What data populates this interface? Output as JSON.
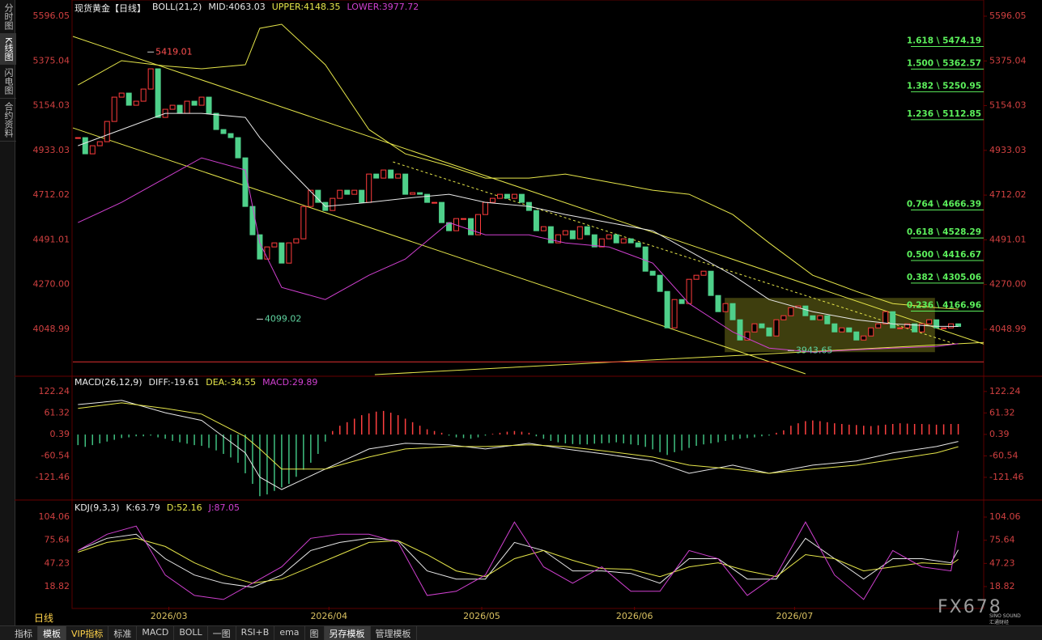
{
  "sidebar": [
    "分时图",
    "K线图",
    "闪电图",
    "合约资料"
  ],
  "period": "日线",
  "toolbar": [
    "指标",
    "模板",
    "VIP指标",
    "标准",
    "MACD",
    "BOLL",
    "一图",
    "RSI+B",
    "ema",
    "图",
    "另存模板",
    "管理模板"
  ],
  "watermark": {
    "brand": "FX678",
    "sub": "SINO SOUND",
    "cn": "汇通财经"
  },
  "chart_data": [
    {
      "type": "candlestick",
      "title": "现货黄金【日线】",
      "indicator": "BOLL(21,2)",
      "xlim": [
        -0.7,
        124.5
      ],
      "ylim": [
        3829,
        5596.05
      ],
      "yticks": [
        5596.05,
        5375.04,
        5154.03,
        4933.03,
        4712.02,
        4491.01,
        {
          "value": 4270,
          "label": "4270.00"
        },
        4048.99
      ],
      "grid": false,
      "up_color": "#ff3c3c",
      "down_color": "#4fd08a",
      "close": [
        4996,
        4916,
        4956,
        4976,
        5076,
        5196,
        5216,
        5156,
        5176,
        5236,
        5336,
        5096,
        5136,
        5156,
        5116,
        5176,
        5156,
        5196,
        5116,
        5036,
        5016,
        4996,
        4896,
        4656,
        4516,
        4396,
        4456,
        4476,
        4376,
        4476,
        4496,
        4656,
        4736,
        4676,
        4636,
        4696,
        4736,
        4716,
        4736,
        4676,
        4816,
        4796,
        4836,
        4796,
        4816,
        4716,
        4724,
        4716,
        4676,
        4676,
        4576,
        4536,
        4596,
        4596,
        4516,
        4616,
        4676,
        4696,
        4716,
        4696,
        4716,
        4676,
        4636,
        4536,
        4556,
        4476,
        4516,
        4536,
        4496,
        4556,
        4516,
        4456,
        4496,
        4516,
        4476,
        4496,
        4476,
        4456,
        4336,
        4316,
        4236,
        4056,
        4196,
        4176,
        4296,
        4316,
        4336,
        4216,
        4136,
        4176,
        4096,
        3996,
        4036,
        4076,
        4056,
        4016,
        4096,
        4116,
        4156,
        4164,
        4116,
        4096,
        4116,
        4076,
        4036,
        4056,
        4036,
        3996,
        4016,
        4056,
        4076,
        4136,
        4056,
        4056,
        4076,
        4036,
        4076,
        4096,
        4056,
        4056,
        4076,
        4063
      ],
      "series": [
        {
          "label": "MID:4063.03",
          "color": "#e8e8e8",
          "x": [
            0,
            6,
            12,
            17,
            23,
            25,
            28,
            34,
            40,
            45,
            51,
            56,
            62,
            67,
            73,
            79,
            84,
            90,
            95,
            101,
            107,
            112,
            118,
            121
          ],
          "values": [
            4956,
            5036,
            5116,
            5116,
            5096,
            4996,
            4876,
            4656,
            4676,
            4696,
            4716,
            4676,
            4656,
            4616,
            4576,
            4536,
            4436,
            4316,
            4196,
            4136,
            4096,
            4076,
            4064,
            4063.03
          ]
        },
        {
          "label": "UPPER:4148.35",
          "color": "#e6e64a",
          "x": [
            0,
            6,
            12,
            17,
            23,
            25,
            28,
            34,
            40,
            45,
            51,
            56,
            62,
            67,
            73,
            79,
            84,
            90,
            95,
            101,
            107,
            112,
            118,
            121
          ],
          "values": [
            5256,
            5376,
            5350,
            5336,
            5356,
            5536,
            5556,
            5356,
            5036,
            4916,
            4856,
            4796,
            4796,
            4816,
            4776,
            4736,
            4716,
            4616,
            4476,
            4316,
            4236,
            4176,
            4156,
            4148.35
          ]
        },
        {
          "label": "LOWER:3977.72",
          "color": "#d040d0",
          "x": [
            0,
            6,
            12,
            17,
            23,
            25,
            28,
            34,
            40,
            45,
            51,
            56,
            62,
            67,
            73,
            79,
            84,
            90,
            95,
            101,
            107,
            112,
            118,
            121
          ],
          "values": [
            4576,
            4676,
            4796,
            4896,
            4836,
            4476,
            4256,
            4196,
            4316,
            4396,
            4576,
            4516,
            4516,
            4476,
            4456,
            4376,
            4176,
            4036,
            3956,
            3936,
            3948,
            3956,
            3964,
            3977.72
          ]
        }
      ],
      "drawings": [
        {
          "x": [
            -0.7,
            124.5
          ],
          "y": [
            5496,
            3976
          ],
          "color": "#e6e64a",
          "dashed": false
        },
        {
          "x": [
            -0.7,
            100
          ],
          "y": [
            5044,
            3829
          ],
          "color": "#e6e64a",
          "dashed": false
        },
        {
          "x": [
            40.8,
            124.5
          ],
          "y": [
            3825,
            3984
          ],
          "color": "#e6e64a",
          "dashed": false
        },
        {
          "x": [
            43.3,
            120.6
          ],
          "y": [
            4876,
            3976
          ],
          "color": "#e6e64a",
          "dashed": true
        },
        {
          "x": [
            -0.7,
            124.5
          ],
          "y": [
            3888,
            3888
          ],
          "color": "#e03030",
          "dashed": false
        }
      ],
      "box": {
        "x": [
          88.9,
          117.8
        ],
        "y": [
          4204,
          3936
        ],
        "color": "#8a8a20"
      },
      "fib_levels": [
        {
          "value": 5474.19,
          "label": "1.618 \\ 5474.19"
        },
        {
          "value": 5362.57,
          "label": "1.500 \\ 5362.57"
        },
        {
          "value": 5250.95,
          "label": "1.382 \\ 5250.95"
        },
        {
          "value": 5112.85,
          "label": "1.236 \\ 5112.85"
        },
        {
          "value": 4666.39,
          "label": "0.764 \\ 4666.39"
        },
        {
          "value": 4528.29,
          "label": "0.618 \\ 4528.29"
        },
        {
          "value": 4416.67,
          "label": "0.500 \\ 4416.67"
        },
        {
          "value": 4305.06,
          "label": "0.382 \\ 4305.06"
        },
        {
          "value": 4166.96,
          "label": "0.236 \\ 4166.96"
        }
      ],
      "fib_color": "#5cf05c",
      "annotations": [
        {
          "x": 10,
          "value": 5419.01,
          "color": "#ff5050"
        },
        {
          "x": 25,
          "value": 4099.02,
          "color": "#5fd3a0"
        },
        {
          "x": 98,
          "value": 3943.65,
          "color": "#5fd3a0"
        }
      ]
    },
    {
      "type": "bar",
      "title": "MACD(26,12,9)",
      "ylim": [
        -179,
        154
      ],
      "yticks": [
        122.24,
        61.32,
        0.39,
        -60.54,
        -121.46
      ],
      "grid": false,
      "hist_label": "MACD:29.89",
      "hist_label_color": "#d040d0",
      "up_color": "#ff4040",
      "down_color": "#3fc080",
      "values": [
        -30,
        -35,
        -30,
        -25,
        -20,
        -15,
        -10,
        -8,
        -5,
        -5,
        -3,
        -8,
        -12,
        -18,
        -22,
        -26,
        -30,
        -32,
        -38,
        -45,
        -55,
        -65,
        -80,
        -110,
        -140,
        -175,
        -170,
        -160,
        -150,
        -140,
        -120,
        -100,
        -80,
        -55,
        -20,
        10,
        25,
        35,
        45,
        55,
        60,
        65,
        67,
        62,
        55,
        45,
        35,
        25,
        15,
        10,
        5,
        -3,
        -8,
        -10,
        -12,
        -8,
        -3,
        2,
        5,
        8,
        10,
        8,
        5,
        -5,
        -12,
        -18,
        -22,
        -25,
        -27,
        -28,
        -28,
        -26,
        -25,
        -24,
        -22,
        -25,
        -28,
        -30,
        -35,
        -42,
        -50,
        -58,
        -50,
        -45,
        -38,
        -32,
        -28,
        -25,
        -22,
        -18,
        -15,
        -12,
        -10,
        -8,
        -5,
        -3,
        5,
        12,
        25,
        32,
        38,
        40,
        38,
        35,
        32,
        30,
        28,
        27,
        25,
        24,
        26,
        28,
        30,
        32,
        31,
        30,
        30,
        29,
        28,
        29,
        30,
        29.89
      ],
      "series": [
        {
          "label": "DIFF:-19.61",
          "color": "#e8e8e8",
          "x": [
            0,
            6,
            12,
            17,
            23,
            25,
            28,
            34,
            40,
            45,
            51,
            56,
            62,
            67,
            73,
            79,
            84,
            90,
            95,
            101,
            107,
            112,
            118,
            121
          ],
          "values": [
            85,
            97,
            62,
            40,
            -52,
            -121,
            -156,
            -98,
            -41,
            -25,
            -29,
            -41,
            -25,
            -41,
            -57,
            -75,
            -110,
            -87,
            -110,
            -87,
            -75,
            -52,
            -34,
            -19.61
          ]
        },
        {
          "label": "DEA:-34.55",
          "color": "#e6e64a",
          "x": [
            0,
            6,
            12,
            17,
            23,
            25,
            28,
            34,
            40,
            45,
            51,
            56,
            62,
            67,
            73,
            79,
            84,
            90,
            95,
            101,
            107,
            112,
            118,
            121
          ],
          "values": [
            74,
            90,
            74,
            58,
            -6,
            -41,
            -98,
            -98,
            -64,
            -41,
            -34,
            -34,
            -29,
            -34,
            -48,
            -64,
            -87,
            -98,
            -110,
            -98,
            -87,
            -71,
            -52,
            -34.55
          ]
        }
      ]
    },
    {
      "type": "line",
      "title": "KDJ(9,3,3)",
      "ylim": [
        -6,
        118
      ],
      "yticks": [
        104.06,
        75.64,
        47.23,
        18.82
      ],
      "grid": false,
      "xticks": [
        {
          "value": 12.5,
          "label": "2026/03"
        },
        {
          "value": 34.5,
          "label": "2026/04"
        },
        {
          "value": 55.5,
          "label": "2026/05"
        },
        {
          "value": 76.5,
          "label": "2026/06"
        },
        {
          "value": 98.5,
          "label": "2026/07"
        }
      ],
      "series": [
        {
          "label": "K:63.79",
          "color": "#e8e8e8",
          "x": [
            0,
            4,
            8,
            12,
            16,
            20,
            24,
            28,
            32,
            36,
            40,
            44,
            48,
            52,
            56,
            60,
            64,
            68,
            72,
            76,
            80,
            84,
            88,
            92,
            96,
            100,
            104,
            108,
            112,
            116,
            120,
            121
          ],
          "values": [
            63,
            78,
            83,
            53,
            33,
            23,
            18,
            33,
            63,
            73,
            78,
            75,
            38,
            28,
            28,
            73,
            63,
            38,
            38,
            35,
            23,
            53,
            53,
            28,
            28,
            78,
            53,
            28,
            53,
            53,
            48,
            63.79
          ]
        },
        {
          "label": "D:52.16",
          "color": "#e6e64a",
          "x": [
            0,
            4,
            8,
            12,
            16,
            20,
            24,
            28,
            32,
            36,
            40,
            44,
            48,
            52,
            56,
            60,
            64,
            68,
            72,
            76,
            80,
            84,
            88,
            92,
            96,
            100,
            104,
            108,
            112,
            116,
            120,
            121
          ],
          "values": [
            61,
            73,
            78,
            68,
            48,
            33,
            23,
            28,
            43,
            58,
            73,
            75,
            58,
            38,
            31,
            53,
            63,
            51,
            41,
            40,
            31,
            43,
            48,
            38,
            31,
            58,
            53,
            38,
            43,
            48,
            46,
            52.16
          ]
        },
        {
          "label": "J:87.05",
          "color": "#d040d0",
          "x": [
            0,
            4,
            8,
            12,
            16,
            20,
            24,
            28,
            32,
            36,
            40,
            44,
            48,
            52,
            56,
            60,
            64,
            68,
            72,
            76,
            80,
            84,
            88,
            92,
            96,
            100,
            104,
            108,
            112,
            116,
            120,
            121
          ],
          "values": [
            63,
            83,
            93,
            33,
            8,
            3,
            23,
            43,
            78,
            83,
            83,
            73,
            8,
            13,
            33,
            98,
            43,
            23,
            43,
            13,
            13,
            63,
            53,
            8,
            33,
            98,
            33,
            3,
            63,
            43,
            38,
            87.05
          ]
        }
      ]
    }
  ]
}
